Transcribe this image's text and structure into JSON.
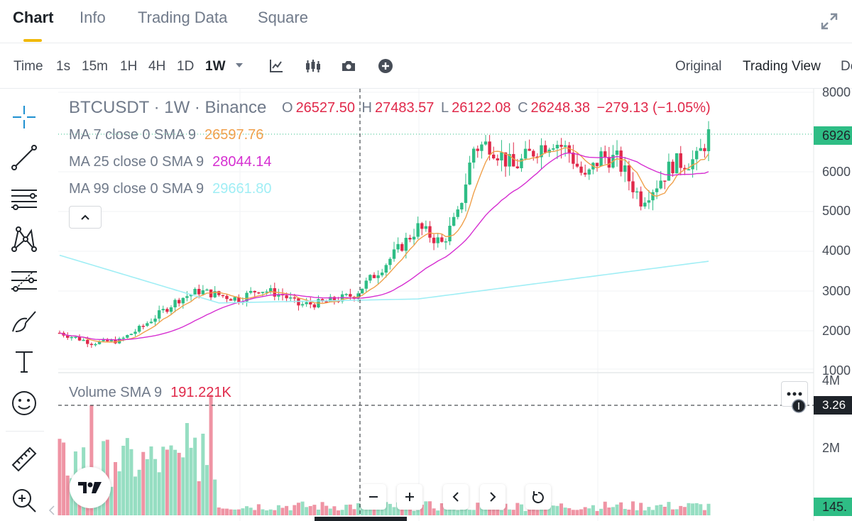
{
  "tabs": [
    "Chart",
    "Info",
    "Trading Data",
    "Square"
  ],
  "toolbar": {
    "time_label": "Time",
    "intervals": [
      "1s",
      "15m",
      "1H",
      "4H",
      "1D",
      "1W"
    ],
    "views": [
      "Original",
      "Trading View",
      "De"
    ]
  },
  "legend": {
    "symbol": "BTCUSDT · 1W · Binance",
    "open_key": "O",
    "open": "26527.50",
    "high_key": "H",
    "high": "27483.57",
    "low_key": "L",
    "low": "26122.08",
    "close_key": "C",
    "close": "26248.38",
    "change": "−279.13 (−1.05%)",
    "ma7_label": "MA 7 close 0 SMA 9",
    "ma7_value": "26597.76",
    "ma25_label": "MA 25 close 0 SMA 9",
    "ma25_value": "28044.14",
    "ma99_label": "MA 99 close 0 SMA 9",
    "ma99_value": "29661.80",
    "volume_label": "Volume SMA 9",
    "volume_value": "191.221K"
  },
  "price_axis": [
    "8000",
    "6000",
    "5000",
    "4000",
    "3000",
    "2000",
    "1000"
  ],
  "volume_axis": [
    "4M",
    "2M"
  ],
  "tags": {
    "last_price": "6926",
    "crosshair_volume": "3.26",
    "last_volume": "145."
  },
  "colors": {
    "up": "#2ebd85",
    "down": "#e0294a",
    "ma7": "#f0a04b",
    "ma25": "#d62fd1",
    "ma99": "#a0eef5",
    "accent": "#f0b90b"
  },
  "icons": [
    "indicator-icon",
    "candles-icon",
    "camera-icon",
    "plus-circle-icon",
    "crosshair-icon",
    "trend-line-icon",
    "horizontal-lines-icon",
    "pattern-icon",
    "fib-icon",
    "brush-icon",
    "text-icon",
    "emoji-icon",
    "ruler-icon",
    "zoom-icon",
    "expand-icon"
  ]
}
